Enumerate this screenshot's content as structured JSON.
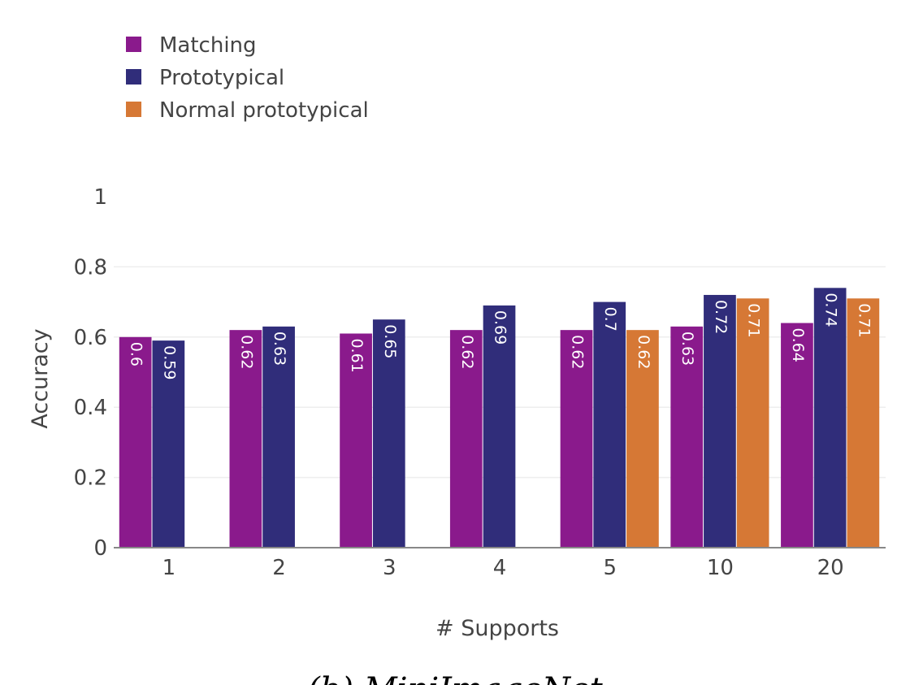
{
  "caption": "(b) MiniImageNet",
  "chart_data": {
    "type": "bar",
    "categories": [
      "1",
      "2",
      "3",
      "4",
      "5",
      "10",
      "20"
    ],
    "series": [
      {
        "name": "Matching",
        "color": "#8a1a8c",
        "values": [
          0.6,
          0.62,
          0.61,
          0.62,
          0.62,
          0.63,
          0.64
        ]
      },
      {
        "name": "Prototypical",
        "color": "#302d7a",
        "values": [
          0.59,
          0.63,
          0.65,
          0.69,
          0.7,
          0.72,
          0.74
        ]
      },
      {
        "name": "Normal prototypical",
        "color": "#d67835",
        "values": [
          null,
          null,
          null,
          null,
          0.62,
          0.71,
          0.71
        ]
      }
    ],
    "xlabel": "# Supports",
    "ylabel": "Accuracy",
    "ylim": [
      0,
      1
    ],
    "yticks": [
      "0",
      "0.2",
      "0.4",
      "0.6",
      "0.8",
      "1"
    ],
    "grid": true,
    "legend_position": "top-left"
  }
}
